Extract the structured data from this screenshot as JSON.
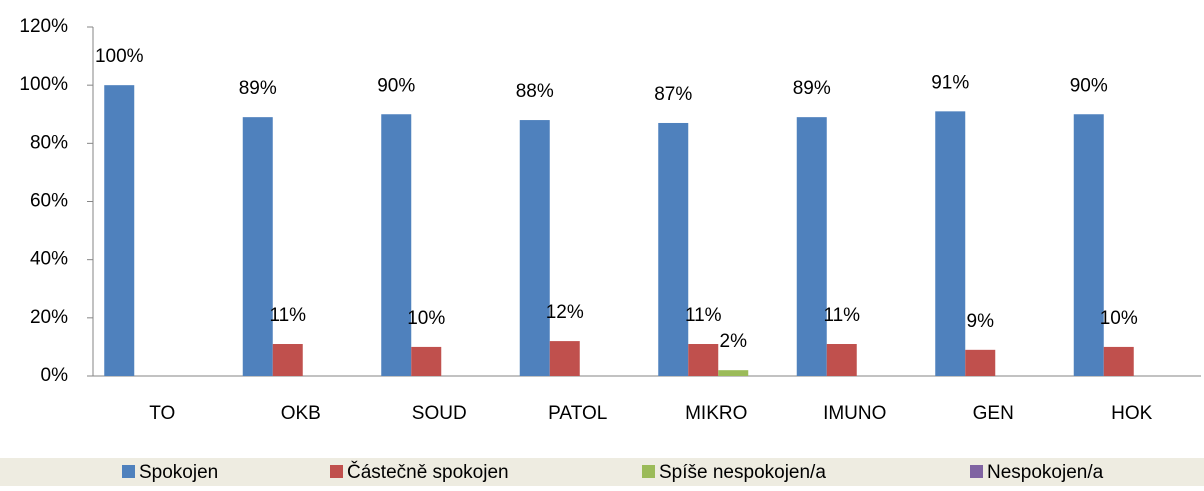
{
  "chart_data": {
    "type": "bar",
    "categories": [
      "TO",
      "OKB",
      "SOUD",
      "PATOL",
      "MIKRO",
      "IMUNO",
      "GEN",
      "HOK"
    ],
    "series": [
      {
        "name": "Spokojen",
        "color": "#4f81bd",
        "values": [
          100,
          89,
          90,
          88,
          87,
          89,
          91,
          90
        ],
        "value_labels": [
          "100%",
          "89%",
          "90%",
          "88%",
          "87%",
          "89%",
          "91%",
          "90%"
        ]
      },
      {
        "name": "Částečně spokojen",
        "color": "#c0504d",
        "values": [
          null,
          11,
          10,
          12,
          11,
          11,
          9,
          10
        ],
        "value_labels": [
          null,
          "11%",
          "10%",
          "12%",
          "11%",
          "11%",
          "9%",
          "10%"
        ]
      },
      {
        "name": "Spíše nespokojen/a",
        "color": "#9bbb59",
        "values": [
          null,
          null,
          null,
          null,
          2,
          null,
          null,
          null
        ],
        "value_labels": [
          null,
          null,
          null,
          null,
          "2%",
          null,
          null,
          null
        ]
      },
      {
        "name": "Nespokojen/a",
        "color": "#8064a2",
        "values": [
          null,
          null,
          null,
          null,
          null,
          null,
          null,
          null
        ],
        "value_labels": [
          null,
          null,
          null,
          null,
          null,
          null,
          null,
          null
        ]
      }
    ],
    "ylim": [
      0,
      120
    ],
    "yticks": [
      {
        "value": 0,
        "label": "0%"
      },
      {
        "value": 20,
        "label": "20%"
      },
      {
        "value": 40,
        "label": "40%"
      },
      {
        "value": 60,
        "label": "60%"
      },
      {
        "value": 80,
        "label": "80%"
      },
      {
        "value": 100,
        "label": "100%"
      },
      {
        "value": 120,
        "label": "120%"
      }
    ],
    "grid": false,
    "legend": "bottom"
  }
}
